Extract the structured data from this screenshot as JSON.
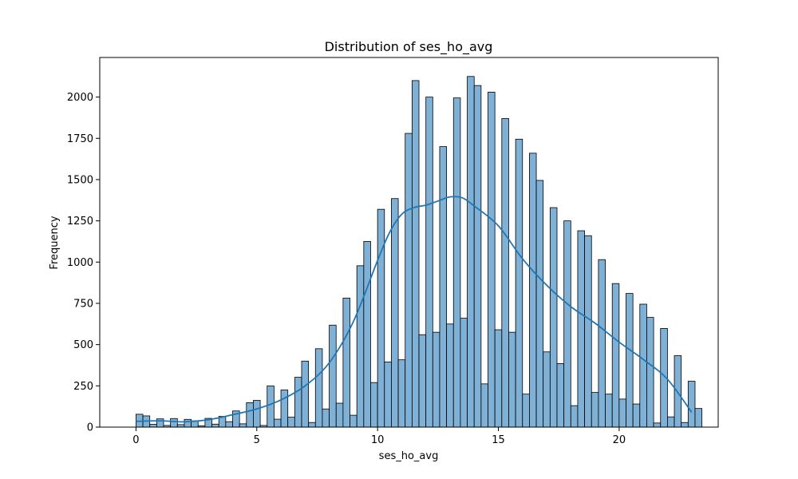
{
  "chart_data": {
    "type": "bar",
    "title": "Distribution of ses_ho_avg",
    "xlabel": "ses_ho_avg",
    "ylabel": "Frequency",
    "xlim": [
      -1.5,
      24.1
    ],
    "ylim": [
      0,
      2240
    ],
    "xticks": [
      0,
      5,
      10,
      15,
      20
    ],
    "yticks": [
      0,
      250,
      500,
      750,
      1000,
      1250,
      1500,
      1750,
      2000
    ],
    "grid": false,
    "legend": "none",
    "bar_color": "#7fb0d6",
    "edge_color": "#000000",
    "kde_color": "#1f77b4",
    "bin_width": 0.2857,
    "bins_start": 0,
    "values": [
      78,
      68,
      17,
      50,
      10,
      52,
      15,
      47,
      38,
      8,
      53,
      18,
      65,
      33,
      98,
      20,
      148,
      162,
      10,
      250,
      48,
      225,
      60,
      302,
      400,
      28,
      475,
      110,
      618,
      145,
      782,
      72,
      978,
      1125,
      270,
      1320,
      395,
      1385,
      408,
      1780,
      2100,
      560,
      2000,
      575,
      1700,
      625,
      1995,
      660,
      2125,
      2070,
      262,
      2030,
      590,
      1870,
      575,
      1745,
      200,
      1660,
      1495,
      456,
      1330,
      385,
      1250,
      130,
      1190,
      1160,
      210,
      1015,
      200,
      870,
      170,
      810,
      140,
      745,
      665,
      25,
      598,
      62,
      433,
      28,
      278,
      113
    ],
    "kde": {
      "x": [
        0,
        1,
        2,
        3,
        4,
        5,
        6,
        7,
        8,
        9,
        10,
        10.5,
        11,
        11.5,
        12,
        12.5,
        13,
        13.5,
        14,
        15,
        16,
        17,
        18,
        19,
        20,
        21,
        22,
        23
      ],
      "y": [
        35,
        38,
        32,
        45,
        75,
        110,
        165,
        250,
        390,
        640,
        1010,
        1180,
        1290,
        1330,
        1345,
        1370,
        1395,
        1390,
        1340,
        1220,
        1020,
        860,
        730,
        630,
        515,
        410,
        290,
        90
      ]
    }
  }
}
